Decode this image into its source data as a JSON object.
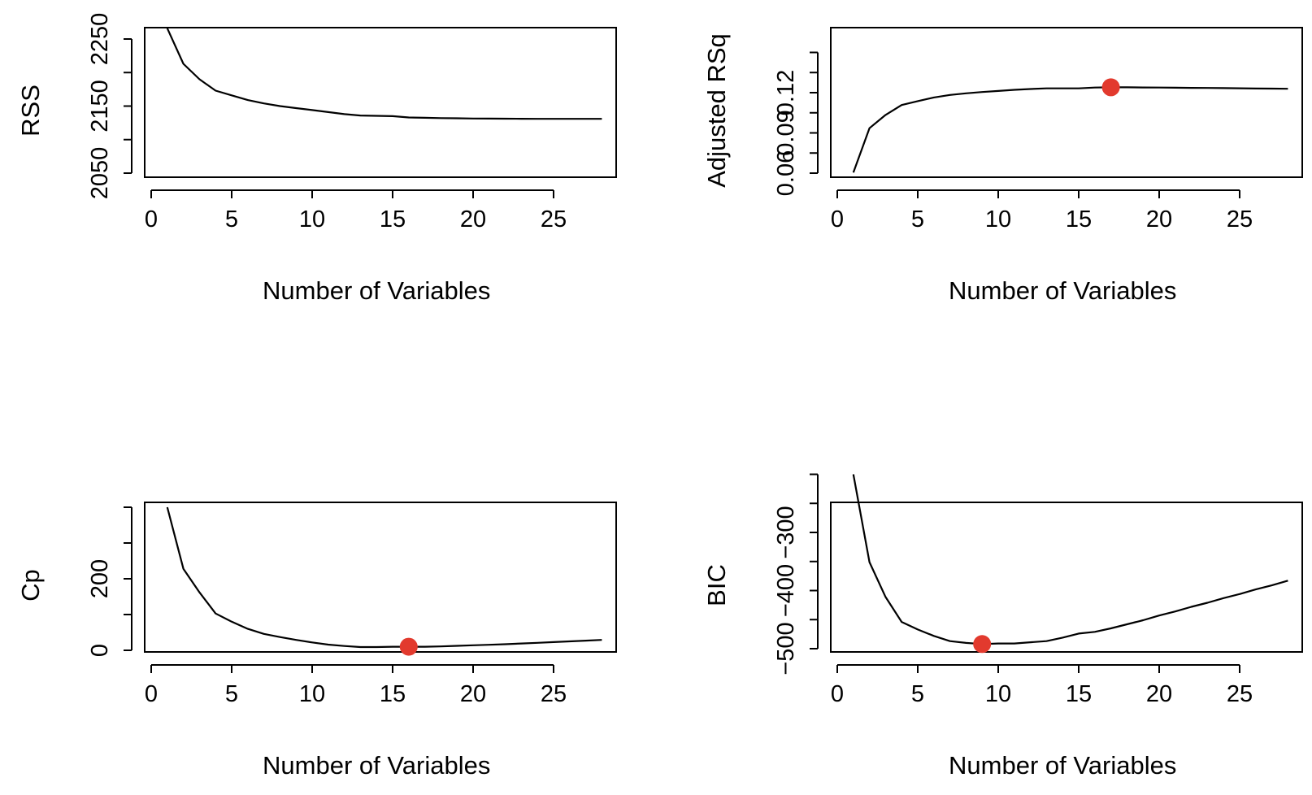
{
  "chart_data": [
    {
      "type": "line",
      "ylabel": "RSS",
      "xlabel": "Number of Variables",
      "xlim": [
        0,
        28
      ],
      "ylim": [
        2050,
        2270
      ],
      "xticks": [
        0,
        5,
        10,
        15,
        20,
        25
      ],
      "yticks": [
        2050,
        2100,
        2150,
        2200,
        2250
      ],
      "ytick_labels": {
        "2050": "2050",
        "2150": "2150",
        "2250": "2250"
      },
      "x": [
        1,
        2,
        3,
        4,
        5,
        6,
        7,
        8,
        9,
        10,
        11,
        12,
        13,
        14,
        15,
        16,
        17,
        18,
        19,
        20,
        21,
        22,
        23,
        24,
        25,
        26,
        27,
        28
      ],
      "values": [
        2266,
        2213,
        2190,
        2173,
        2166,
        2159,
        2154,
        2150,
        2147,
        2144,
        2141,
        2138,
        2136,
        2135.5,
        2135,
        2133,
        2132.5,
        2132,
        2131.8,
        2131.5,
        2131.3,
        2131.2,
        2131.1,
        2131,
        2131,
        2131,
        2131,
        2131
      ],
      "highlight": null,
      "highlight_color": "#e23a2e"
    },
    {
      "type": "line",
      "ylabel": "Adjusted RSq",
      "xlabel": "Number of Variables",
      "xlim": [
        0,
        28
      ],
      "ylim": [
        0.06,
        0.15
      ],
      "xticks": [
        0,
        5,
        10,
        15,
        20,
        25
      ],
      "yticks": [
        0.06,
        0.075,
        0.09,
        0.105,
        0.12,
        0.135,
        0.15
      ],
      "ytick_labels": {
        "0.06": "0.06",
        "0.09": "0.09",
        "0.12": "0.12"
      },
      "x": [
        1,
        2,
        3,
        4,
        5,
        6,
        7,
        8,
        9,
        10,
        11,
        12,
        13,
        14,
        15,
        16,
        17,
        18,
        19,
        20,
        21,
        22,
        23,
        24,
        25,
        26,
        27,
        28
      ],
      "values": [
        0.0604,
        0.0935,
        0.1034,
        0.1108,
        0.1137,
        0.1164,
        0.1183,
        0.1195,
        0.1205,
        0.1213,
        0.1221,
        0.1227,
        0.1232,
        0.1232,
        0.1232,
        0.1238,
        0.124,
        0.124,
        0.1239,
        0.1238,
        0.1237,
        0.1236,
        0.1235,
        0.1234,
        0.1233,
        0.1231,
        0.123,
        0.1229
      ],
      "highlight": {
        "x": 17,
        "y": 0.124
      },
      "highlight_color": "#e23a2e"
    },
    {
      "type": "line",
      "ylabel": "Cp",
      "xlabel": "Number of Variables",
      "xlim": [
        0,
        28
      ],
      "ylim": [
        0,
        400
      ],
      "xticks": [
        0,
        5,
        10,
        15,
        20,
        25
      ],
      "yticks": [
        0,
        100,
        200,
        300,
        400
      ],
      "ytick_labels": {
        "0": "0",
        "200": "200"
      },
      "x": [
        1,
        2,
        3,
        4,
        5,
        6,
        7,
        8,
        9,
        10,
        11,
        12,
        13,
        14,
        15,
        16,
        17,
        18,
        19,
        20,
        21,
        22,
        23,
        24,
        25,
        26,
        27,
        28
      ],
      "values": [
        400,
        228,
        162,
        103,
        80,
        60,
        46,
        37,
        29,
        22,
        16,
        12,
        9,
        9,
        10,
        10,
        10,
        11,
        12.5,
        14,
        15.5,
        17,
        19,
        21,
        23,
        25,
        27,
        29
      ],
      "highlight": {
        "x": 16,
        "y": 10
      },
      "highlight_color": "#e23a2e"
    },
    {
      "type": "line",
      "ylabel": "BIC",
      "xlabel": "Number of Variables",
      "xlim": [
        0,
        28
      ],
      "ylim": [
        -500,
        -190
      ],
      "xticks": [
        0,
        5,
        10,
        15,
        20,
        25
      ],
      "yticks": [
        -500,
        -450,
        -400,
        -350,
        -300,
        -250,
        -200
      ],
      "ytick_labels": {
        "-500": "−500",
        "-400": "−400",
        "-300": "−300"
      },
      "x": [
        1,
        2,
        3,
        4,
        5,
        6,
        7,
        8,
        9,
        10,
        11,
        12,
        13,
        14,
        15,
        16,
        17,
        18,
        19,
        20,
        21,
        22,
        23,
        24,
        25,
        26,
        27,
        28
      ],
      "values": [
        -200,
        -351,
        -411,
        -454,
        -467,
        -478,
        -487,
        -490,
        -492,
        -491,
        -491,
        -489,
        -487,
        -481,
        -474,
        -471,
        -465,
        -458,
        -451,
        -443,
        -436,
        -428,
        -421,
        -413,
        -406,
        -398,
        -391,
        -383
      ],
      "highlight": {
        "x": 9,
        "y": -492
      },
      "highlight_color": "#e23a2e"
    }
  ]
}
